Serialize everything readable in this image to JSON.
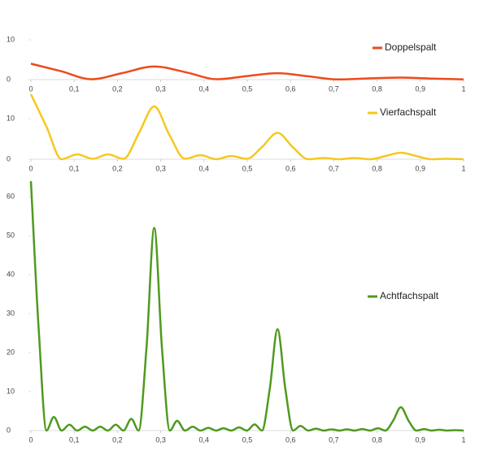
{
  "chart_data": [
    {
      "type": "line",
      "x": [
        0,
        0.07,
        0.14,
        0.21,
        0.285,
        0.36,
        0.43,
        0.5,
        0.57,
        0.64,
        0.71,
        0.78,
        0.855,
        0.93,
        1
      ],
      "series": [
        {
          "name": "Doppelspalt",
          "color": "#ee4a1c",
          "values": [
            4,
            2.1,
            0.1,
            1.6,
            3.3,
            1.8,
            0.1,
            0.9,
            1.6,
            0.85,
            0.05,
            0.3,
            0.5,
            0.25,
            0.05
          ]
        }
      ],
      "xlim": [
        0,
        1
      ],
      "ylim": [
        0,
        20
      ],
      "xticks": [
        0,
        {
          "value": 0.1,
          "label": "0,1"
        },
        {
          "value": 0.2,
          "label": "0,2"
        },
        {
          "value": 0.3,
          "label": "0,3"
        },
        {
          "value": 0.4,
          "label": "0,4"
        },
        {
          "value": 0.5,
          "label": "0,5"
        },
        {
          "value": 0.6,
          "label": "0,6"
        },
        {
          "value": 0.7,
          "label": "0,7"
        },
        {
          "value": 0.8,
          "label": "0,8"
        },
        {
          "value": 0.9,
          "label": "0,9"
        },
        1
      ],
      "yticks": [
        0,
        10
      ],
      "legend": "right"
    },
    {
      "type": "line",
      "x": [
        0,
        0.036,
        0.071,
        0.107,
        0.143,
        0.178,
        0.214,
        0.25,
        0.285,
        0.32,
        0.356,
        0.392,
        0.428,
        0.463,
        0.499,
        0.534,
        0.57,
        0.605,
        0.641,
        0.677,
        0.712,
        0.748,
        0.784,
        0.82,
        0.855,
        0.89,
        0.926,
        0.96,
        1
      ],
      "series": [
        {
          "name": "Vierfachspalt",
          "color": "#f6c81e",
          "values": [
            16,
            8,
            0,
            1.2,
            0.1,
            1.2,
            0.1,
            6.5,
            13,
            6,
            0.1,
            1,
            0,
            0.8,
            0.1,
            3,
            6.5,
            3,
            0,
            0.3,
            0,
            0.3,
            0,
            0.8,
            1.6,
            0.8,
            0,
            0.1,
            0
          ]
        }
      ],
      "xlim": [
        0,
        1
      ],
      "ylim": [
        0,
        17
      ],
      "xticks": [
        0,
        {
          "value": 0.1,
          "label": "0,1"
        },
        {
          "value": 0.2,
          "label": "0,2"
        },
        {
          "value": 0.3,
          "label": "0,3"
        },
        {
          "value": 0.4,
          "label": "0,4"
        },
        {
          "value": 0.5,
          "label": "0,5"
        },
        {
          "value": 0.6,
          "label": "0,6"
        },
        {
          "value": 0.7,
          "label": "0,7"
        },
        {
          "value": 0.8,
          "label": "0,8"
        },
        {
          "value": 0.9,
          "label": "0,9"
        },
        1
      ],
      "yticks": [
        0,
        10
      ],
      "legend": "right"
    },
    {
      "type": "line",
      "x": [
        0,
        0.018,
        0.036,
        0.053,
        0.071,
        0.089,
        0.107,
        0.125,
        0.143,
        0.16,
        0.178,
        0.196,
        0.214,
        0.232,
        0.249,
        0.267,
        0.285,
        0.303,
        0.321,
        0.338,
        0.356,
        0.374,
        0.392,
        0.41,
        0.428,
        0.445,
        0.463,
        0.481,
        0.499,
        0.517,
        0.534,
        0.552,
        0.57,
        0.588,
        0.606,
        0.623,
        0.641,
        0.659,
        0.677,
        0.695,
        0.713,
        0.73,
        0.748,
        0.766,
        0.784,
        0.802,
        0.819,
        0.837,
        0.855,
        0.873,
        0.891,
        0.909,
        0.926,
        0.944,
        0.962,
        0.98,
        1
      ],
      "series": [
        {
          "name": "Achtfachspalt",
          "color": "#4f9a1e",
          "values": [
            64,
            26,
            0,
            3.5,
            0,
            1.5,
            0,
            1,
            0,
            1,
            0,
            1.5,
            0,
            3,
            0,
            21,
            52,
            21,
            0,
            2.5,
            0,
            1,
            0,
            0.7,
            0,
            0.6,
            0,
            0.8,
            0,
            1.6,
            0,
            10.7,
            26,
            10.7,
            0,
            1.2,
            0,
            0.5,
            0,
            0.3,
            0,
            0.3,
            0,
            0.4,
            0,
            0.6,
            0,
            2.5,
            6,
            2.5,
            0,
            0.4,
            0,
            0.2,
            0,
            0.1,
            0
          ]
        }
      ],
      "xlim": [
        0,
        1
      ],
      "ylim": [
        0,
        64
      ],
      "xticks": [
        0,
        {
          "value": 0.1,
          "label": "0,1"
        },
        {
          "value": 0.2,
          "label": "0,2"
        },
        {
          "value": 0.3,
          "label": "0,3"
        },
        {
          "value": 0.4,
          "label": "0,4"
        },
        {
          "value": 0.5,
          "label": "0,5"
        },
        {
          "value": 0.6,
          "label": "0,6"
        },
        {
          "value": 0.7,
          "label": "0,7"
        },
        {
          "value": 0.8,
          "label": "0,8"
        },
        {
          "value": 0.9,
          "label": "0,9"
        },
        1
      ],
      "yticks": [
        0,
        10,
        20,
        30,
        40,
        50,
        60
      ],
      "legend": "right"
    }
  ]
}
